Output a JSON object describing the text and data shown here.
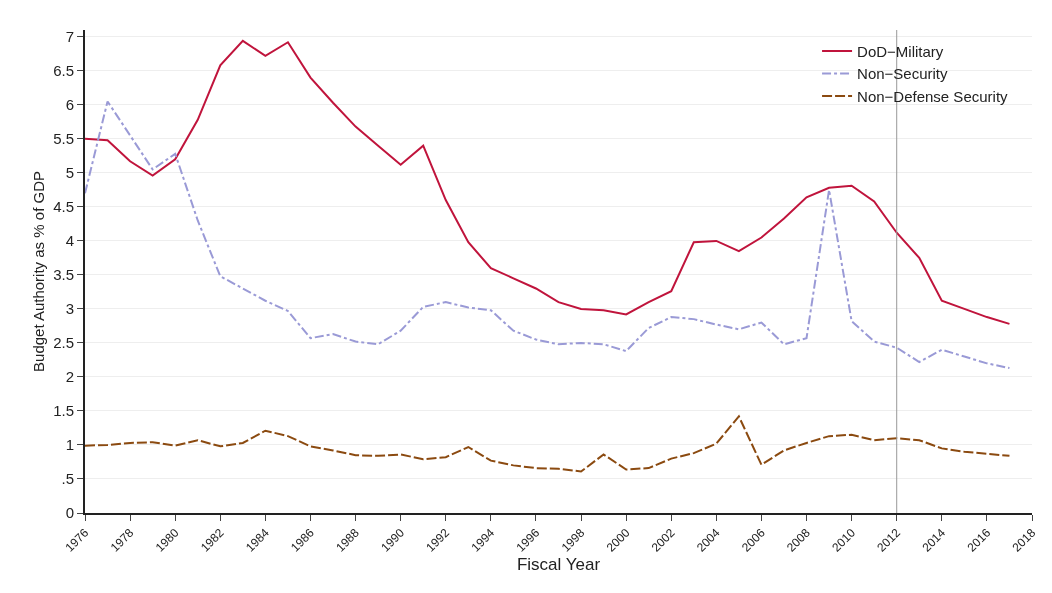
{
  "chart_data": {
    "type": "line",
    "xlabel": "Fiscal Year",
    "ylabel": "Budget Authority as % of GDP",
    "x": [
      1976,
      1977,
      1978,
      1979,
      1980,
      1981,
      1982,
      1983,
      1984,
      1985,
      1986,
      1987,
      1988,
      1989,
      1990,
      1991,
      1992,
      1993,
      1994,
      1995,
      1996,
      1997,
      1998,
      1999,
      2000,
      2001,
      2002,
      2003,
      2004,
      2005,
      2006,
      2007,
      2008,
      2009,
      2010,
      2011,
      2012,
      2013,
      2014,
      2015,
      2016,
      2017
    ],
    "series": [
      {
        "name": "DoD−Military",
        "color": "#c0143c",
        "line_style": "solid",
        "values": [
          5.5,
          5.48,
          5.17,
          4.96,
          5.2,
          5.78,
          6.58,
          6.94,
          6.72,
          6.92,
          6.4,
          6.03,
          5.68,
          5.4,
          5.12,
          5.4,
          4.6,
          3.98,
          3.6,
          3.45,
          3.3,
          3.1,
          3.0,
          2.98,
          2.92,
          3.1,
          3.26,
          3.98,
          4.0,
          3.85,
          4.05,
          4.33,
          4.64,
          4.78,
          4.81,
          4.58,
          4.12,
          3.75,
          3.12,
          3.0,
          2.88,
          2.78
        ]
      },
      {
        "name": "Non−Security",
        "color": "#9a9ad6",
        "line_style": "dashdot",
        "values": [
          4.7,
          6.05,
          5.55,
          5.05,
          5.28,
          4.3,
          3.48,
          3.3,
          3.12,
          2.97,
          2.57,
          2.63,
          2.52,
          2.48,
          2.68,
          3.03,
          3.1,
          3.02,
          2.98,
          2.68,
          2.55,
          2.48,
          2.5,
          2.48,
          2.38,
          2.72,
          2.88,
          2.85,
          2.77,
          2.7,
          2.8,
          2.48,
          2.57,
          4.75,
          2.82,
          2.52,
          2.43,
          2.22,
          2.4,
          2.3,
          2.2,
          2.13
        ]
      },
      {
        "name": "Non−Defense Security",
        "color": "#8b4a10",
        "line_style": "dashed",
        "values": [
          0.99,
          1.0,
          1.03,
          1.04,
          0.99,
          1.07,
          0.98,
          1.03,
          1.21,
          1.13,
          0.98,
          0.92,
          0.85,
          0.84,
          0.86,
          0.79,
          0.82,
          0.97,
          0.77,
          0.7,
          0.66,
          0.65,
          0.61,
          0.86,
          0.64,
          0.66,
          0.8,
          0.88,
          1.02,
          1.42,
          0.71,
          0.92,
          1.03,
          1.13,
          1.15,
          1.07,
          1.1,
          1.07,
          0.95,
          0.9,
          0.87,
          0.84
        ]
      }
    ],
    "xlim": [
      1976,
      2018
    ],
    "xticks": [
      1976,
      1978,
      1980,
      1982,
      1984,
      1986,
      1988,
      1990,
      1992,
      1994,
      1996,
      1998,
      2000,
      2002,
      2004,
      2006,
      2008,
      2010,
      2012,
      2014,
      2016,
      2018
    ],
    "ylim": [
      0,
      7.1
    ],
    "yticks": [
      0,
      {
        "value": 0.5,
        "label": ".5"
      },
      1,
      1.5,
      2,
      2.5,
      3,
      3.5,
      4,
      4.5,
      5,
      5.5,
      6,
      6.5,
      7
    ],
    "ref_lines": [
      {
        "axis": "x",
        "value": 2012,
        "color": "#999999",
        "line_style": "solid"
      }
    ],
    "grid": "y",
    "legend": "top right",
    "marker": "none"
  }
}
